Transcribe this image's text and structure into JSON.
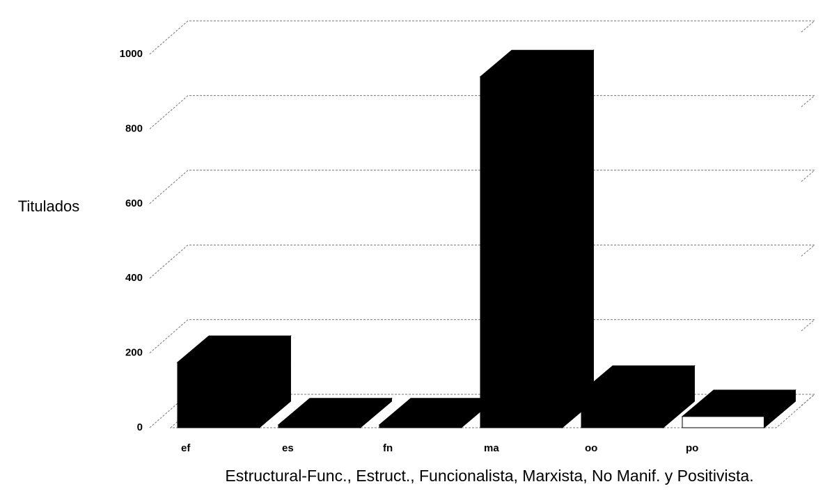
{
  "chart_data": {
    "type": "bar3d",
    "y_label": "Titulados",
    "x_label": "Estructural-Func., Estruct., Funcionalista, Marxista, No Manif. y Positivista.",
    "categories": [
      "ef",
      "es",
      "fn",
      "ma",
      "oo",
      "po"
    ],
    "values": [
      175,
      8,
      8,
      940,
      95,
      30
    ],
    "color": "#000000",
    "ylim": [
      0,
      1000
    ],
    "yticks": [
      0,
      200,
      400,
      600,
      800,
      1000
    ],
    "grid": true
  }
}
